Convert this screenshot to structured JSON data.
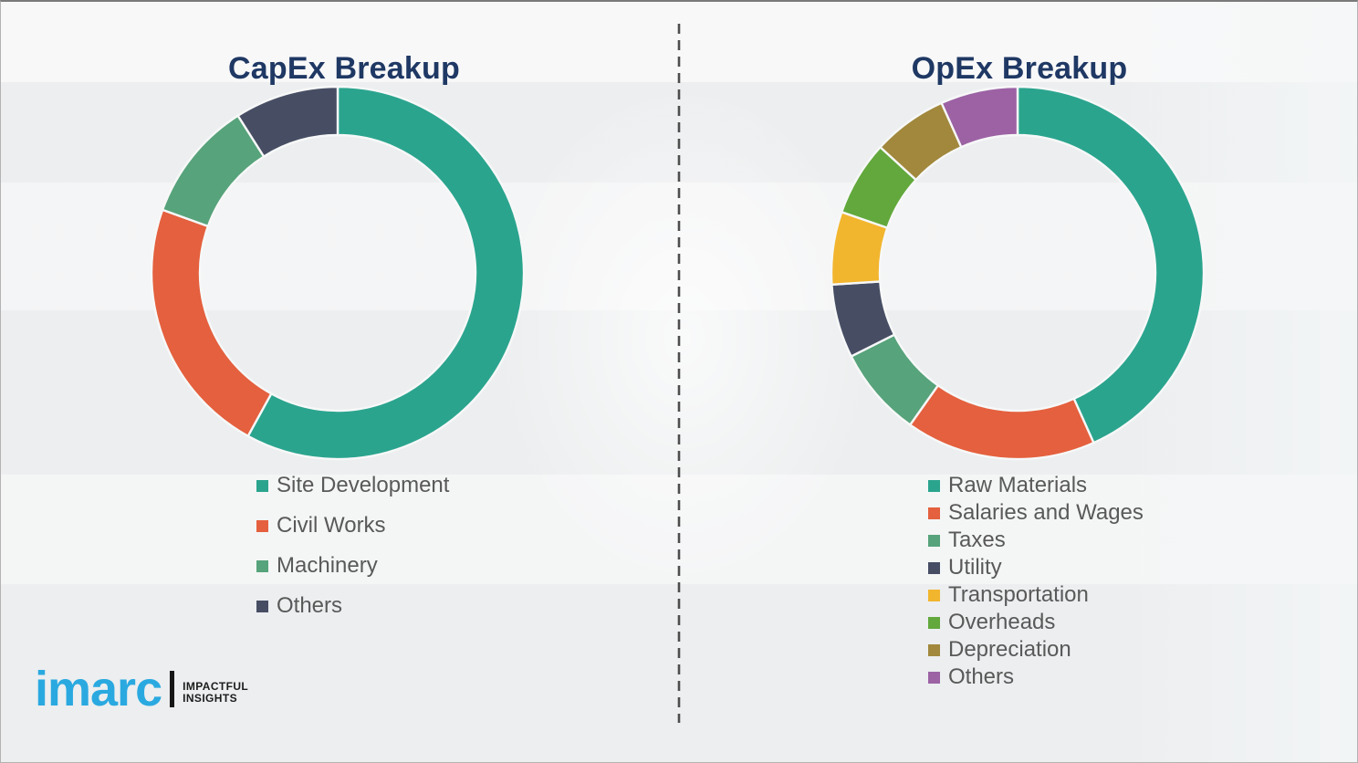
{
  "page": {
    "background_color": "#eff0f1",
    "divider_color": "#4d4d4d",
    "title_color": "#1f3864",
    "legend_text_color": "#595959"
  },
  "logo": {
    "brand": "imarc",
    "brand_color": "#2aa9e0",
    "tagline_line1": "IMPACTFUL",
    "tagline_line2": "INSIGHTS"
  },
  "chart_data": [
    {
      "type": "donut",
      "title": "CapEx Breakup",
      "labels": [
        "Site Development",
        "Civil Works",
        "Machinery",
        "Others"
      ],
      "values": [
        58,
        22.5,
        10.5,
        9
      ],
      "colors": [
        "#2ba48e",
        "#e4603e",
        "#57a37b",
        "#474e64"
      ],
      "unit": "percent-estimated",
      "start_angle_deg": 0,
      "direction": "clockwise",
      "hole_ratio": 0.74,
      "legend_position": "below-left",
      "grid": false
    },
    {
      "type": "donut",
      "title": "OpEx Breakup",
      "labels": [
        "Raw Materials",
        "Salaries and Wages",
        "Taxes",
        "Utility",
        "Transportation",
        "Overheads",
        "Depreciation",
        "Others"
      ],
      "values": [
        43.3,
        16.5,
        7.8,
        6.4,
        6.3,
        6.5,
        6.5,
        6.7
      ],
      "colors": [
        "#2ba48e",
        "#e4603e",
        "#57a37b",
        "#474e64",
        "#f2b52e",
        "#62a83c",
        "#a1883c",
        "#9c62a4"
      ],
      "unit": "percent-estimated",
      "start_angle_deg": 0,
      "direction": "clockwise",
      "hole_ratio": 0.74,
      "legend_position": "below-left",
      "grid": false
    }
  ]
}
